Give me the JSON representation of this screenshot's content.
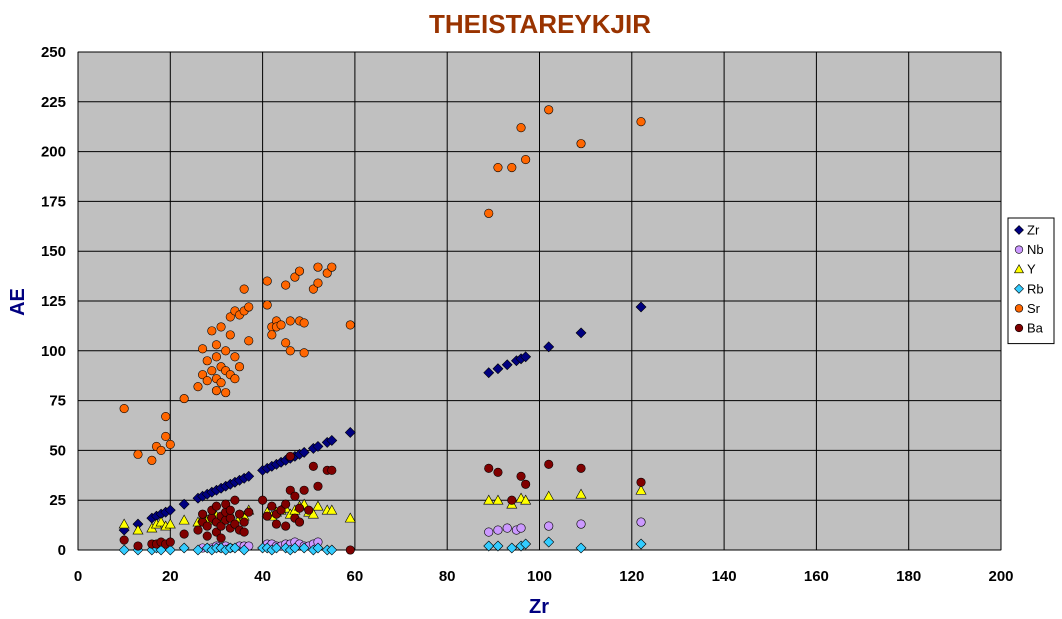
{
  "chart_data": {
    "type": "scatter",
    "title": "THEISTAREYKJIR",
    "xlabel": "Zr",
    "ylabel": "AE",
    "xlim": [
      0,
      200
    ],
    "ylim": [
      0,
      250
    ],
    "x_ticks": [
      "0",
      "20",
      "40",
      "60",
      "80",
      "100",
      "120",
      "140",
      "160",
      "180",
      "200"
    ],
    "y_ticks": [
      "0",
      "25",
      "50",
      "75",
      "100",
      "125",
      "150",
      "175",
      "200",
      "225",
      "250"
    ],
    "grid": true,
    "legend_position": "right",
    "colors": {
      "title": "#993300",
      "axis_title": "#000080",
      "plot_bg": "#c0c0c0",
      "gridline": "#000000"
    },
    "series": [
      {
        "name": "Zr",
        "marker": "diamond",
        "color": "#000080",
        "points": [
          [
            10,
            10
          ],
          [
            13,
            13
          ],
          [
            16,
            16
          ],
          [
            17,
            17
          ],
          [
            18,
            18
          ],
          [
            19,
            19
          ],
          [
            20,
            20
          ],
          [
            23,
            23
          ],
          [
            26,
            26
          ],
          [
            27,
            27
          ],
          [
            28,
            28
          ],
          [
            29,
            29
          ],
          [
            30,
            30
          ],
          [
            31,
            31
          ],
          [
            32,
            32
          ],
          [
            33,
            33
          ],
          [
            34,
            34
          ],
          [
            35,
            35
          ],
          [
            36,
            36
          ],
          [
            37,
            37
          ],
          [
            40,
            40
          ],
          [
            41,
            41
          ],
          [
            42,
            42
          ],
          [
            43,
            43
          ],
          [
            44,
            44
          ],
          [
            45,
            45
          ],
          [
            46,
            46
          ],
          [
            47,
            47
          ],
          [
            48,
            48
          ],
          [
            49,
            49
          ],
          [
            51,
            51
          ],
          [
            52,
            52
          ],
          [
            54,
            54
          ],
          [
            55,
            55
          ],
          [
            59,
            59
          ],
          [
            89,
            89
          ],
          [
            91,
            91
          ],
          [
            93,
            93
          ],
          [
            95,
            95
          ],
          [
            96,
            96
          ],
          [
            97,
            97
          ],
          [
            102,
            102
          ],
          [
            109,
            109
          ],
          [
            122,
            122
          ]
        ]
      },
      {
        "name": "Nb",
        "marker": "circle",
        "color": "#cc99ff",
        "points": [
          [
            27,
            1
          ],
          [
            29,
            1
          ],
          [
            30,
            2
          ],
          [
            31,
            1
          ],
          [
            32,
            2
          ],
          [
            33,
            1
          ],
          [
            35,
            2
          ],
          [
            36,
            2
          ],
          [
            37,
            2
          ],
          [
            41,
            3
          ],
          [
            42,
            3
          ],
          [
            43,
            2
          ],
          [
            44,
            2
          ],
          [
            45,
            3
          ],
          [
            46,
            3
          ],
          [
            47,
            4
          ],
          [
            48,
            3
          ],
          [
            49,
            2
          ],
          [
            50,
            2
          ],
          [
            51,
            3
          ],
          [
            52,
            4
          ],
          [
            89,
            9
          ],
          [
            91,
            10
          ],
          [
            93,
            11
          ],
          [
            95,
            10
          ],
          [
            96,
            11
          ],
          [
            102,
            12
          ],
          [
            109,
            13
          ],
          [
            122,
            14
          ]
        ]
      },
      {
        "name": "Y",
        "marker": "triangle",
        "color": "#ffff00",
        "points": [
          [
            10,
            13
          ],
          [
            13,
            10
          ],
          [
            16,
            11
          ],
          [
            17,
            13
          ],
          [
            18,
            14
          ],
          [
            19,
            12
          ],
          [
            20,
            13
          ],
          [
            23,
            15
          ],
          [
            26,
            14
          ],
          [
            27,
            16
          ],
          [
            28,
            15
          ],
          [
            29,
            18
          ],
          [
            30,
            17
          ],
          [
            31,
            16
          ],
          [
            32,
            19
          ],
          [
            33,
            18
          ],
          [
            35,
            16
          ],
          [
            36,
            17
          ],
          [
            37,
            20
          ],
          [
            41,
            19
          ],
          [
            42,
            17
          ],
          [
            43,
            19
          ],
          [
            44,
            20
          ],
          [
            45,
            21
          ],
          [
            46,
            18
          ],
          [
            47,
            20
          ],
          [
            48,
            22
          ],
          [
            49,
            23
          ],
          [
            50,
            19
          ],
          [
            51,
            18
          ],
          [
            52,
            22
          ],
          [
            54,
            20
          ],
          [
            55,
            20
          ],
          [
            59,
            16
          ],
          [
            89,
            25
          ],
          [
            91,
            25
          ],
          [
            94,
            23
          ],
          [
            96,
            26
          ],
          [
            97,
            25
          ],
          [
            102,
            27
          ],
          [
            109,
            28
          ],
          [
            122,
            30
          ]
        ]
      },
      {
        "name": "Rb",
        "marker": "diamond",
        "color": "#33ccff",
        "points": [
          [
            10,
            0
          ],
          [
            13,
            0
          ],
          [
            16,
            0
          ],
          [
            17,
            1
          ],
          [
            18,
            0
          ],
          [
            20,
            0
          ],
          [
            23,
            1
          ],
          [
            26,
            0
          ],
          [
            28,
            1
          ],
          [
            29,
            0
          ],
          [
            30,
            1
          ],
          [
            31,
            1
          ],
          [
            32,
            0
          ],
          [
            33,
            1
          ],
          [
            34,
            1
          ],
          [
            36,
            0
          ],
          [
            40,
            1
          ],
          [
            41,
            1
          ],
          [
            42,
            0
          ],
          [
            43,
            1
          ],
          [
            45,
            1
          ],
          [
            46,
            0
          ],
          [
            47,
            1
          ],
          [
            49,
            1
          ],
          [
            51,
            0
          ],
          [
            52,
            1
          ],
          [
            54,
            0
          ],
          [
            55,
            0
          ],
          [
            89,
            2
          ],
          [
            91,
            2
          ],
          [
            94,
            1
          ],
          [
            96,
            2
          ],
          [
            97,
            3
          ],
          [
            102,
            4
          ],
          [
            109,
            1
          ],
          [
            122,
            3
          ]
        ]
      },
      {
        "name": "Sr",
        "marker": "circle",
        "color": "#ff6600",
        "points": [
          [
            10,
            71
          ],
          [
            13,
            48
          ],
          [
            16,
            45
          ],
          [
            17,
            52
          ],
          [
            18,
            50
          ],
          [
            19,
            57
          ],
          [
            19,
            67
          ],
          [
            20,
            53
          ],
          [
            23,
            76
          ],
          [
            26,
            82
          ],
          [
            27,
            88
          ],
          [
            27,
            101
          ],
          [
            28,
            85
          ],
          [
            28,
            95
          ],
          [
            29,
            90
          ],
          [
            29,
            110
          ],
          [
            30,
            80
          ],
          [
            30,
            86
          ],
          [
            30,
            97
          ],
          [
            30,
            103
          ],
          [
            31,
            84
          ],
          [
            31,
            92
          ],
          [
            31,
            112
          ],
          [
            32,
            79
          ],
          [
            32,
            90
          ],
          [
            32,
            100
          ],
          [
            33,
            88
          ],
          [
            33,
            108
          ],
          [
            33,
            117
          ],
          [
            34,
            86
          ],
          [
            34,
            97
          ],
          [
            34,
            120
          ],
          [
            35,
            92
          ],
          [
            35,
            118
          ],
          [
            36,
            120
          ],
          [
            36,
            131
          ],
          [
            37,
            105
          ],
          [
            37,
            122
          ],
          [
            41,
            123
          ],
          [
            41,
            135
          ],
          [
            42,
            112
          ],
          [
            42,
            108
          ],
          [
            43,
            115
          ],
          [
            43,
            112
          ],
          [
            44,
            113
          ],
          [
            45,
            133
          ],
          [
            45,
            104
          ],
          [
            46,
            100
          ],
          [
            46,
            115
          ],
          [
            47,
            137
          ],
          [
            48,
            115
          ],
          [
            48,
            140
          ],
          [
            49,
            99
          ],
          [
            49,
            114
          ],
          [
            51,
            131
          ],
          [
            52,
            134
          ],
          [
            52,
            142
          ],
          [
            54,
            139
          ],
          [
            55,
            142
          ],
          [
            59,
            113
          ],
          [
            89,
            169
          ],
          [
            91,
            192
          ],
          [
            94,
            192
          ],
          [
            96,
            212
          ],
          [
            97,
            196
          ],
          [
            102,
            221
          ],
          [
            109,
            204
          ],
          [
            122,
            215
          ]
        ]
      },
      {
        "name": "Ba",
        "marker": "circle",
        "color": "#800000",
        "points": [
          [
            10,
            5
          ],
          [
            13,
            2
          ],
          [
            16,
            3
          ],
          [
            17,
            3
          ],
          [
            18,
            4
          ],
          [
            19,
            3
          ],
          [
            20,
            4
          ],
          [
            23,
            8
          ],
          [
            26,
            10
          ],
          [
            27,
            14
          ],
          [
            27,
            18
          ],
          [
            28,
            12
          ],
          [
            28,
            7
          ],
          [
            29,
            16
          ],
          [
            29,
            20
          ],
          [
            30,
            9
          ],
          [
            30,
            14
          ],
          [
            30,
            22
          ],
          [
            31,
            12
          ],
          [
            31,
            17
          ],
          [
            31,
            6
          ],
          [
            32,
            15
          ],
          [
            32,
            19
          ],
          [
            32,
            23
          ],
          [
            33,
            11
          ],
          [
            33,
            16
          ],
          [
            33,
            20
          ],
          [
            34,
            13
          ],
          [
            34,
            25
          ],
          [
            35,
            10
          ],
          [
            35,
            18
          ],
          [
            36,
            14
          ],
          [
            36,
            9
          ],
          [
            37,
            19
          ],
          [
            40,
            25
          ],
          [
            41,
            17
          ],
          [
            42,
            22
          ],
          [
            43,
            13
          ],
          [
            43,
            18
          ],
          [
            44,
            20
          ],
          [
            45,
            12
          ],
          [
            45,
            23
          ],
          [
            46,
            47
          ],
          [
            46,
            30
          ],
          [
            47,
            16
          ],
          [
            47,
            27
          ],
          [
            48,
            14
          ],
          [
            48,
            21
          ],
          [
            49,
            30
          ],
          [
            50,
            20
          ],
          [
            51,
            42
          ],
          [
            52,
            32
          ],
          [
            54,
            40
          ],
          [
            55,
            40
          ],
          [
            59,
            0
          ],
          [
            89,
            41
          ],
          [
            91,
            39
          ],
          [
            94,
            25
          ],
          [
            96,
            37
          ],
          [
            97,
            33
          ],
          [
            102,
            43
          ],
          [
            109,
            41
          ],
          [
            122,
            34
          ]
        ]
      }
    ]
  }
}
